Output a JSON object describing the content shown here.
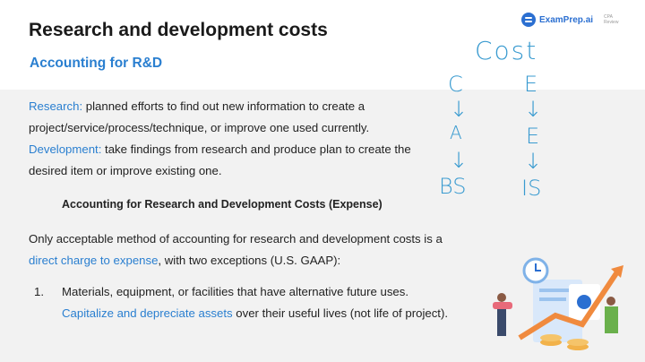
{
  "slide": {
    "title": "Research and development costs",
    "subtitle": "Accounting for R&D",
    "logo": {
      "name": "ExamPrep.ai",
      "sub1": "CPA",
      "sub2": "Review"
    },
    "research_label": "Research:",
    "research_text": " planned efforts to find out new information to create a",
    "research_text2": "project/service/process/technique, or improve one used currently.",
    "development_label": "Development:",
    "development_text": " take findings from research and produce plan to create the",
    "development_text2": "desired item or improve existing one.",
    "heading": "Accounting for Research and Development Costs (Expense)",
    "only_text": "Only acceptable method of accounting for research and development costs is a",
    "direct_charge": "direct charge to expense",
    "exceptions": ", with two exceptions (U.S. GAAP):",
    "item_number": "1.",
    "item_text": "Materials, equipment, or facilities that have alternative future uses.",
    "capitalize": "Capitalize and depreciate assets",
    "item_rest": " over their useful lives (not life of project)."
  },
  "annotations": {
    "cost": "Cost",
    "left": [
      "C",
      "↓",
      "A",
      "↓",
      "BS"
    ],
    "right": [
      "E",
      "↓",
      "E",
      "↓",
      "IS"
    ]
  },
  "colors": {
    "accent": "#2a7fd0",
    "ink": "#3a9bd0"
  }
}
